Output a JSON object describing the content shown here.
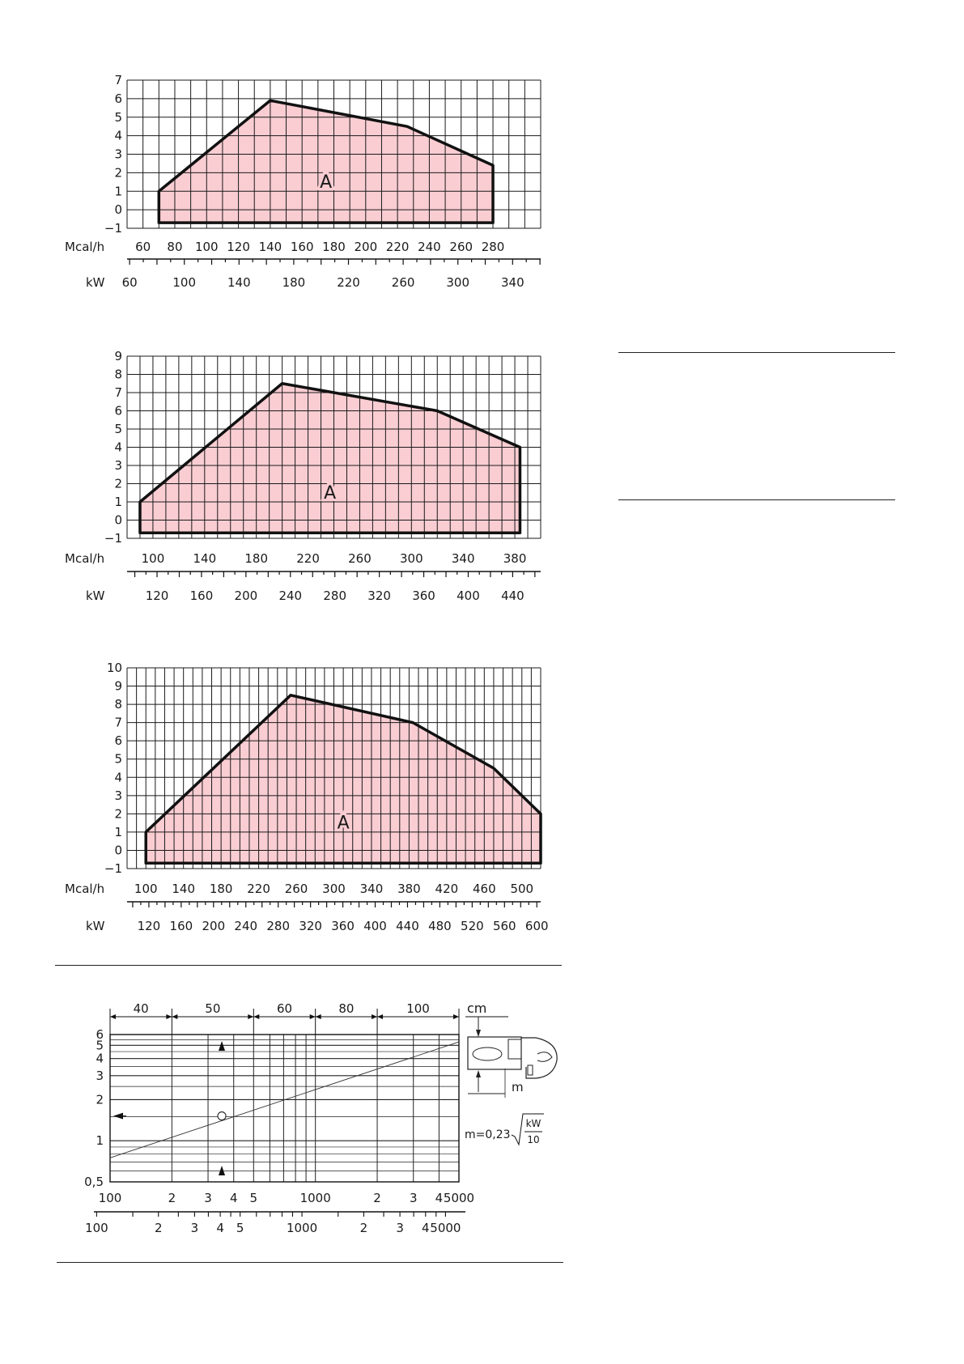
{
  "colors": {
    "area_fill": "#f9cdd2",
    "grid": "#1a1a1a",
    "outline": "#111111"
  },
  "chart_data": [
    {
      "type": "area",
      "region_label": "A",
      "y_ticks": [
        -1,
        0,
        1,
        2,
        3,
        4,
        5,
        6,
        7
      ],
      "x_ticks_mcal": [
        60,
        80,
        100,
        120,
        140,
        160,
        180,
        200,
        220,
        240,
        260,
        280
      ],
      "x_ticks_kw": [
        60,
        100,
        140,
        180,
        220,
        260,
        300,
        340
      ],
      "xlabel_mcal": "Mcal/h",
      "xlabel_kw": "kW",
      "xlim_mcal": [
        50,
        310
      ],
      "kw_per_mcal": 1.163,
      "ylim": [
        -1,
        7
      ],
      "area_bottom": -0.7,
      "x": [
        70,
        70,
        140,
        226,
        280,
        280
      ],
      "y": [
        -0.7,
        1,
        5.9,
        4.5,
        2.4,
        -0.7
      ]
    },
    {
      "type": "area",
      "region_label": "A",
      "y_ticks": [
        -1,
        0,
        1,
        2,
        3,
        4,
        5,
        6,
        7,
        8,
        9
      ],
      "x_ticks_mcal": [
        100,
        140,
        180,
        220,
        260,
        300,
        340,
        380
      ],
      "x_ticks_kw": [
        120,
        160,
        200,
        240,
        280,
        320,
        360,
        400,
        440
      ],
      "xlabel_mcal": "Mcal/h",
      "xlabel_kw": "kW",
      "xlim_mcal": [
        80,
        400
      ],
      "kw_per_mcal": 1.163,
      "ylim": [
        -1,
        9
      ],
      "area_bottom": -0.7,
      "x": [
        90,
        90,
        200,
        320,
        384,
        384
      ],
      "y": [
        -0.7,
        1,
        7.5,
        6,
        4,
        -0.7
      ]
    },
    {
      "type": "area",
      "region_label": "A",
      "y_ticks": [
        -1,
        0,
        1,
        2,
        3,
        4,
        5,
        6,
        7,
        8,
        9,
        10
      ],
      "x_ticks_mcal": [
        100,
        140,
        180,
        220,
        260,
        300,
        340,
        380,
        420,
        460,
        500
      ],
      "x_ticks_kw": [
        120,
        160,
        200,
        240,
        280,
        320,
        360,
        400,
        440,
        480,
        520,
        560,
        600
      ],
      "xlabel_mcal": "Mcal/h",
      "xlabel_kw": "kW",
      "xlim_mcal": [
        80,
        520
      ],
      "kw_per_mcal": 1.163,
      "ylim": [
        -1,
        10
      ],
      "area_bottom": -0.7,
      "x": [
        100,
        100,
        254,
        384,
        470,
        520,
        520
      ],
      "y": [
        -0.7,
        1,
        8.5,
        7,
        4.5,
        2,
        -0.7
      ]
    },
    {
      "type": "line",
      "x_scale": "log",
      "y_scale": "log",
      "xlim": [
        100,
        5000
      ],
      "ylim": [
        0.5,
        6
      ],
      "x_tick_labels": [
        {
          "value": 100,
          "label": "100"
        },
        {
          "value": 200,
          "label": "2"
        },
        {
          "value": 300,
          "label": "3"
        },
        {
          "value": 400,
          "label": "4"
        },
        {
          "value": 500,
          "label": "5"
        },
        {
          "value": 1000,
          "label": "1000"
        },
        {
          "value": 2000,
          "label": "2"
        },
        {
          "value": 3000,
          "label": "3"
        },
        {
          "value": 4000,
          "label": "4"
        },
        {
          "value": 5000,
          "label": "5000"
        }
      ],
      "x2_tick_labels": [
        {
          "value": 86,
          "label": "100"
        },
        {
          "value": 172,
          "label": "2"
        },
        {
          "value": 258,
          "label": "3"
        },
        {
          "value": 344,
          "label": "4"
        },
        {
          "value": 430,
          "label": "5"
        },
        {
          "value": 860,
          "label": "1000"
        },
        {
          "value": 1720,
          "label": "2"
        },
        {
          "value": 2580,
          "label": "3"
        },
        {
          "value": 3440,
          "label": "4"
        },
        {
          "value": 4300,
          "label": "5000"
        }
      ],
      "x2_minor_ticks": [
        129,
        215,
        301,
        387,
        516,
        602,
        688,
        774,
        1290,
        2150,
        3010,
        3870
      ],
      "y_tick_labels": [
        {
          "value": 0.5,
          "label": "0,5"
        },
        {
          "value": 1,
          "label": "1"
        },
        {
          "value": 2,
          "label": "2"
        },
        {
          "value": 3,
          "label": "3"
        },
        {
          "value": 4,
          "label": "4"
        },
        {
          "value": 5,
          "label": "5"
        },
        {
          "value": 6,
          "label": "6"
        }
      ],
      "y_gridlines": [
        0.5,
        0.6,
        0.7,
        0.8,
        0.9,
        1,
        1.5,
        2,
        2.5,
        3,
        3.5,
        4,
        4.5,
        5,
        5.5,
        6
      ],
      "x_gridlines": [
        100,
        200,
        300,
        400,
        500,
        600,
        700,
        800,
        900,
        1000,
        2000,
        3000,
        4000,
        5000
      ],
      "top_dimension_labels": [
        "40",
        "50",
        "60",
        "80",
        "100"
      ],
      "top_dimension_bounds": [
        100,
        200,
        500,
        1000,
        2000,
        5000
      ],
      "top_unit": "cm",
      "line": {
        "x": [
          100,
          5000
        ],
        "y": [
          0.75,
          5.3
        ]
      },
      "marked_point": {
        "x": 350,
        "y": 1.52
      },
      "formula": {
        "lhs": "m=0,23",
        "num": "kW",
        "den": "10"
      },
      "burner_label": "m"
    }
  ]
}
